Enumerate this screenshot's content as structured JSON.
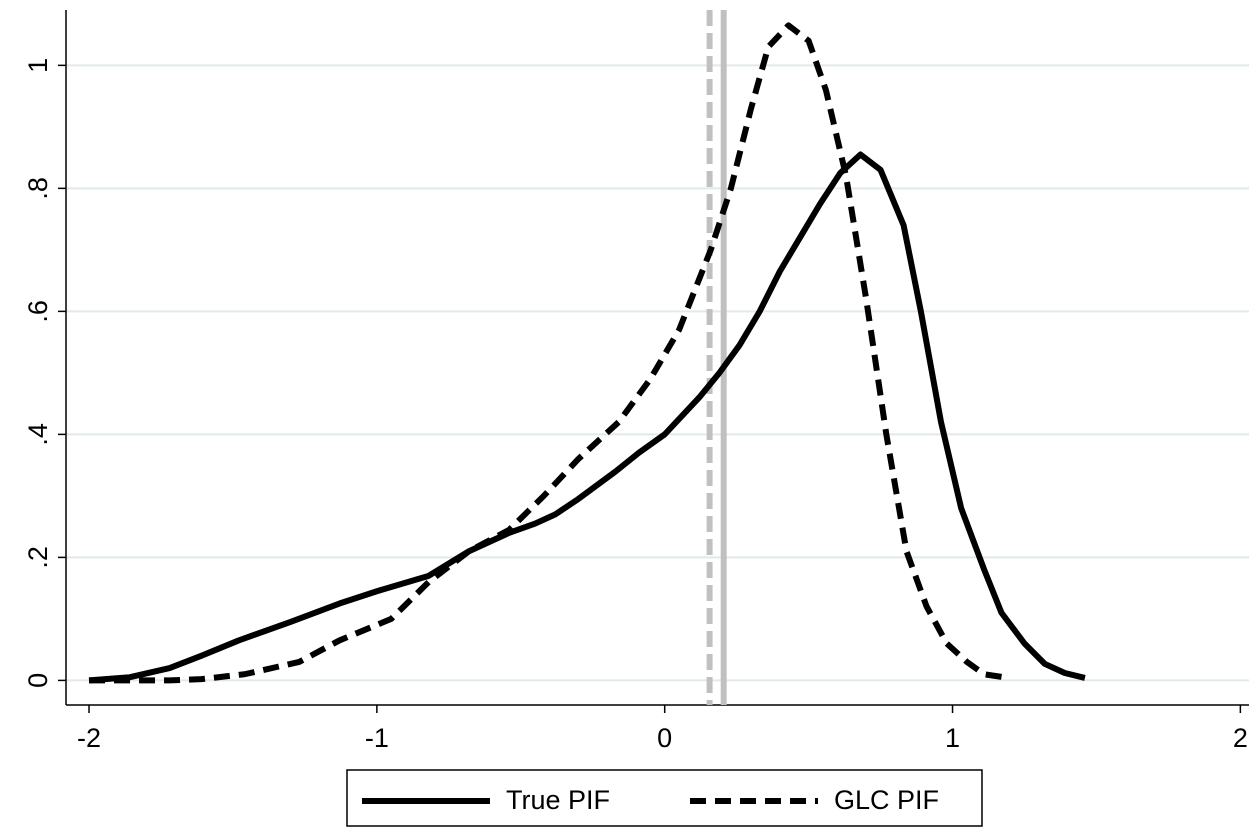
{
  "chart_data": {
    "type": "line",
    "xlim": [
      -2.08,
      2.03
    ],
    "ylim": [
      -0.04,
      1.09
    ],
    "xticks": [
      -2,
      -1,
      0,
      1,
      2
    ],
    "yticks": [
      0,
      {
        "value": 0.2,
        "label": ".2"
      },
      {
        "value": 0.4,
        "label": ".4"
      },
      {
        "value": 0.6,
        "label": ".6"
      },
      {
        "value": 0.8,
        "label": ".8"
      },
      1
    ],
    "grid": true,
    "vlines": [
      {
        "value": 0.156,
        "color": "#c0c0c0",
        "dashed": true
      },
      {
        "value": 0.205,
        "color": "#c0c0c0",
        "dashed": false
      }
    ],
    "legend": "bottom",
    "series": [
      {
        "name": "True PIF",
        "color": "#000000",
        "dashed": false,
        "x": [
          -2,
          -1.86,
          -1.72,
          -1.61,
          -1.48,
          -1.3,
          -1.13,
          -1.0,
          -0.82,
          -0.68,
          -0.54,
          -0.45,
          -0.38,
          -0.3,
          -0.17,
          -0.09,
          0,
          0.12,
          0.19,
          0.26,
          0.33,
          0.4,
          0.47,
          0.54,
          0.61,
          0.68,
          0.75,
          0.83,
          0.89,
          0.96,
          1.03,
          1.11,
          1.17,
          1.25,
          1.32,
          1.39,
          1.46
        ],
        "values": [
          0,
          0.005,
          0.02,
          0.04,
          0.065,
          0.095,
          0.125,
          0.145,
          0.17,
          0.21,
          0.24,
          0.255,
          0.27,
          0.295,
          0.34,
          0.37,
          0.4,
          0.46,
          0.5,
          0.545,
          0.6,
          0.665,
          0.72,
          0.775,
          0.825,
          0.855,
          0.83,
          0.74,
          0.6,
          0.42,
          0.28,
          0.18,
          0.11,
          0.06,
          0.027,
          0.012,
          0.004
        ]
      },
      {
        "name": "GLC PIF",
        "color": "#000000",
        "dashed": true,
        "x": [
          -2,
          -1.86,
          -1.72,
          -1.61,
          -1.46,
          -1.27,
          -1.13,
          -0.95,
          -0.82,
          -0.68,
          -0.54,
          -0.42,
          -0.3,
          -0.16,
          -0.05,
          0.05,
          0.16,
          0.23,
          0.3,
          0.36,
          0.43,
          0.5,
          0.56,
          0.63,
          0.7,
          0.77,
          0.84,
          0.91,
          0.98,
          1.05,
          1.11,
          1.18
        ],
        "values": [
          0,
          0,
          0,
          0.002,
          0.01,
          0.03,
          0.065,
          0.1,
          0.16,
          0.21,
          0.245,
          0.3,
          0.36,
          0.42,
          0.49,
          0.57,
          0.7,
          0.8,
          0.93,
          1.03,
          1.065,
          1.04,
          0.96,
          0.82,
          0.62,
          0.4,
          0.21,
          0.12,
          0.06,
          0.03,
          0.01,
          0.005
        ]
      }
    ]
  }
}
